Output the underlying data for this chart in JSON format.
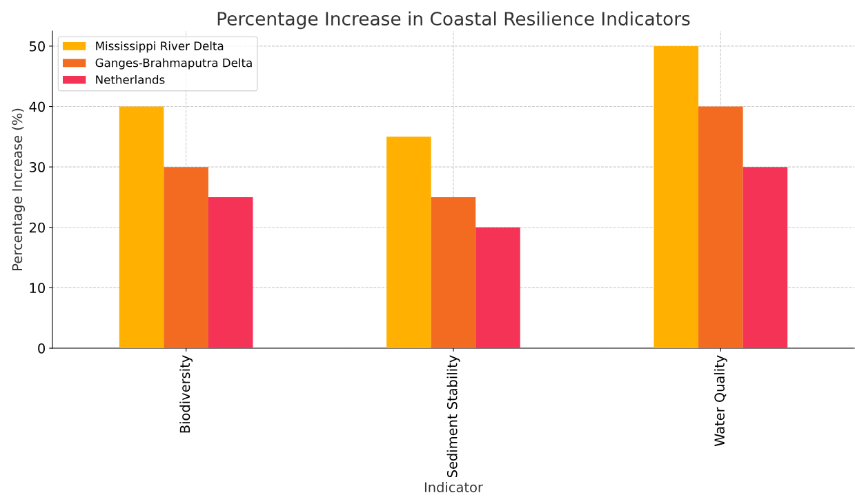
{
  "chart_data": {
    "type": "bar",
    "title": "Percentage Increase in Coastal Resilience Indicators",
    "xlabel": "Indicator",
    "ylabel": "Percentage Increase (%)",
    "categories": [
      "Biodiversity",
      "Sediment Stability",
      "Water Quality"
    ],
    "series": [
      {
        "name": "Mississippi River Delta",
        "color": "#ffb000",
        "values": [
          40,
          35,
          50
        ]
      },
      {
        "name": "Ganges-Brahmaputra Delta",
        "color": "#f26b21",
        "values": [
          30,
          25,
          40
        ]
      },
      {
        "name": "Netherlands",
        "color": "#f43357",
        "values": [
          25,
          20,
          30
        ]
      }
    ],
    "ylim": [
      0,
      52.5
    ],
    "yticks": [
      0,
      10,
      20,
      30,
      40,
      50
    ],
    "grid": true,
    "legend": "top left"
  }
}
